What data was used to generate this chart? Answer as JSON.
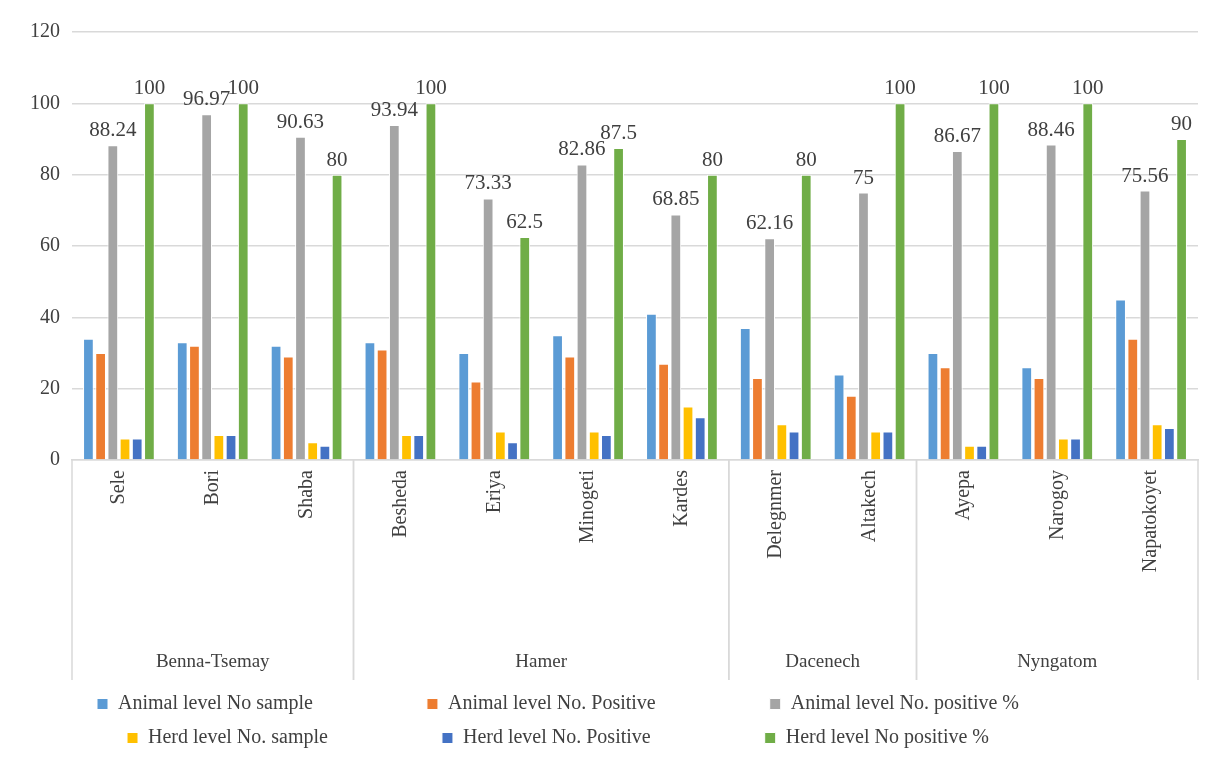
{
  "chart_data": {
    "type": "bar",
    "categories": [
      "Sele",
      "Bori",
      "Shaba",
      "Besheda",
      "Eriya",
      "Minogeti",
      "Kardes",
      "Delegnmer",
      "Altakech",
      "Ayepa",
      "Narogoy",
      "Napatokoyet"
    ],
    "series": [
      {
        "name": "Animal level No sample",
        "color": "#5b9bd5",
        "values": [
          34,
          33,
          32,
          33,
          30,
          35,
          41,
          37,
          24,
          30,
          26,
          45
        ]
      },
      {
        "name": "Animal level No. Positive",
        "color": "#ed7d31",
        "values": [
          30,
          32,
          29,
          31,
          22,
          29,
          27,
          23,
          18,
          26,
          23,
          34
        ]
      },
      {
        "name": "Animal level No. positive %",
        "color": "#a5a5a5",
        "values": [
          88.24,
          96.97,
          90.63,
          93.94,
          73.33,
          82.86,
          68.85,
          62.16,
          75,
          86.67,
          88.46,
          75.56
        ],
        "value_labels": [
          "88.24",
          "96.97",
          "90.63",
          "93.94",
          "73.33",
          "82.86",
          "68.85",
          "62.16",
          "75",
          "86.67",
          "88.46",
          "75.56"
        ]
      },
      {
        "name": "Herd level No. sample",
        "color": "#ffc000",
        "values": [
          6,
          7,
          5,
          7,
          8,
          8,
          15,
          10,
          8,
          4,
          6,
          10
        ]
      },
      {
        "name": "Herd level No. Positive",
        "color": "#4472c4",
        "values": [
          6,
          7,
          4,
          7,
          5,
          7,
          12,
          8,
          8,
          4,
          6,
          9
        ]
      },
      {
        "name": "Herd level No positive %",
        "color": "#70ad47",
        "values": [
          100,
          100,
          80,
          100,
          62.5,
          87.5,
          80,
          80,
          100,
          100,
          100,
          90
        ],
        "value_labels": [
          "100",
          "100",
          "80",
          "100",
          "62.5",
          "87.5",
          "80",
          "80",
          "100",
          "100",
          "100",
          "90"
        ]
      }
    ],
    "annotations": [
      "Benna-Tsemay",
      "Hamer",
      "Dacenech",
      "Nyngatom"
    ],
    "ylim": [
      0,
      120
    ],
    "yticks": [
      0,
      20,
      40,
      60,
      80,
      100,
      120
    ],
    "grid": "y",
    "legend": "bottom"
  }
}
